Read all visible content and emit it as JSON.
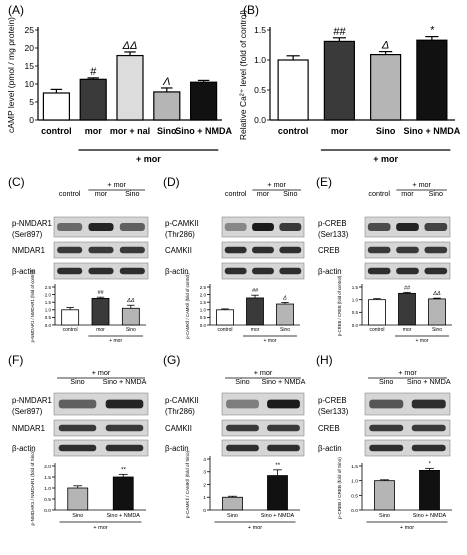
{
  "colors": {
    "white": "#ffffff",
    "black": "#111111",
    "grey": "#b5b5b5",
    "lightgrey": "#dcdcdc",
    "darkgrey": "#3a3a3a"
  },
  "panels": {
    "A": {
      "label": "(A)",
      "ylabel": "cAMP level (pmol / mg protein)",
      "group_label": "+ mor"
    },
    "B": {
      "label": "(B)",
      "ylabel": "Relative Ca²⁺ level (fold of control)",
      "group_label": "+ mor"
    },
    "C": {
      "label": "(C)",
      "blot_rows": [
        "p-NMDAR1",
        "(Ser897)",
        "NMDAR1",
        "β-actin"
      ],
      "lanes": [
        "control",
        "mor",
        "Sino"
      ],
      "mor_label": "+ mor",
      "ylabel": "p-NMDAR1 / NMDAR1 (fold of control)"
    },
    "D": {
      "label": "(D)",
      "blot_rows": [
        "p-CAMKII",
        "(Thr286)",
        "CAMKII",
        "β-actin"
      ],
      "lanes": [
        "control",
        "mor",
        "Sino"
      ],
      "mor_label": "+ mor",
      "ylabel": "p-CAMKⅡ / CAMKⅡ (fold of control)"
    },
    "E": {
      "label": "(E)",
      "blot_rows": [
        "p-CREB",
        "(Ser133)",
        "CREB",
        "β-actin"
      ],
      "lanes": [
        "control",
        "mor",
        "Sino"
      ],
      "mor_label": "+ mor",
      "ylabel": "p-CREB / CREB (fold of control)"
    },
    "F": {
      "label": "(F)",
      "blot_rows": [
        "p-NMDAR1",
        "(Ser897)",
        "NMDAR1",
        "β-actin"
      ],
      "lanes": [
        "Sino",
        "Sino + NMDA"
      ],
      "mor_label": "+ mor",
      "ylabel": "p-NMDAR1 / NMDAR1 (fold of Sino)"
    },
    "G": {
      "label": "(G)",
      "blot_rows": [
        "p-CAMKII",
        "(Thr286)",
        "CAMKII",
        "β-actin"
      ],
      "lanes": [
        "Sino",
        "Sino + NMDA"
      ],
      "mor_label": "+ mor",
      "ylabel": "p-CAMKⅡ / CAMKⅡ (fold of Sino)"
    },
    "H": {
      "label": "(H)",
      "blot_rows": [
        "p-CREB",
        "(Ser133)",
        "CREB",
        "β-actin"
      ],
      "lanes": [
        "Sino",
        "Sino + NMDA"
      ],
      "mor_label": "+ mor",
      "ylabel": "p-CREB / CREB (fold of Sino)"
    }
  },
  "chart_data": [
    {
      "id": "A",
      "type": "bar",
      "categories": [
        "control",
        "mor",
        "mor + nal",
        "Sino",
        "Sino + NMDA"
      ],
      "values": [
        7.5,
        11.3,
        17.9,
        7.8,
        10.5
      ],
      "errors": [
        1.0,
        0.4,
        1.0,
        1.1,
        0.5
      ],
      "annotations": [
        "",
        "#",
        "ΔΔ",
        "Λ",
        ""
      ],
      "fills": [
        "#ffffff",
        "#3a3a3a",
        "#dcdcdc",
        "#b5b5b5",
        "#111111"
      ],
      "xlabel": "",
      "ylabel": "cAMP level (pmol / mg protein)",
      "ylim": [
        0,
        25
      ],
      "yticks": [
        0,
        5,
        10,
        15,
        20,
        25
      ],
      "grid": false
    },
    {
      "id": "B",
      "type": "bar",
      "categories": [
        "control",
        "mor",
        "Sino",
        "Sino + NMDA"
      ],
      "values": [
        1.0,
        1.31,
        1.09,
        1.33
      ],
      "errors": [
        0.07,
        0.06,
        0.05,
        0.06
      ],
      "annotations": [
        "",
        "##",
        "Δ",
        "*"
      ],
      "fills": [
        "#ffffff",
        "#3a3a3a",
        "#b5b5b5",
        "#111111"
      ],
      "xlabel": "",
      "ylabel": "Relative Ca²⁺ level (fold of control)",
      "ylim": [
        0,
        1.5
      ],
      "yticks": [
        0.0,
        0.5,
        1.0,
        1.5
      ],
      "grid": false
    },
    {
      "id": "C",
      "type": "bar",
      "categories": [
        "control",
        "mor",
        "Sino"
      ],
      "values": [
        1.0,
        1.75,
        1.1
      ],
      "errors": [
        0.15,
        0.08,
        0.2
      ],
      "annotations": [
        "",
        "##",
        "ΔΔ"
      ],
      "fills": [
        "#ffffff",
        "#3a3a3a",
        "#b5b5b5"
      ],
      "ylabel": "p-NMDAR1 / NMDAR1 (fold of control)",
      "ylim": [
        0,
        2.5
      ],
      "yticks": [
        0.0,
        0.5,
        1.0,
        1.5,
        2.0,
        2.5
      ]
    },
    {
      "id": "D",
      "type": "bar",
      "categories": [
        "control",
        "mor",
        "Sino"
      ],
      "values": [
        1.0,
        1.78,
        1.38
      ],
      "errors": [
        0.06,
        0.18,
        0.1
      ],
      "annotations": [
        "",
        "##",
        "Δ"
      ],
      "fills": [
        "#ffffff",
        "#3a3a3a",
        "#b5b5b5"
      ],
      "ylabel": "p-CAMKⅡ / CAMKⅡ (fold of control)",
      "ylim": [
        0,
        2.5
      ],
      "yticks": [
        0.0,
        0.5,
        1.0,
        1.5,
        2.0,
        2.5
      ]
    },
    {
      "id": "E",
      "type": "bar",
      "categories": [
        "control",
        "mor",
        "Sino"
      ],
      "values": [
        1.0,
        1.25,
        1.03
      ],
      "errors": [
        0.04,
        0.04,
        0.03
      ],
      "annotations": [
        "",
        "##",
        "ΔΔ"
      ],
      "fills": [
        "#ffffff",
        "#3a3a3a",
        "#b5b5b5"
      ],
      "ylabel": "p-CREB / CREB (fold of control)",
      "ylim": [
        0,
        1.5
      ],
      "yticks": [
        0.0,
        0.5,
        1.0,
        1.5
      ]
    },
    {
      "id": "F",
      "type": "bar",
      "categories": [
        "Sino",
        "Sino + NMDA"
      ],
      "values": [
        1.0,
        1.5
      ],
      "errors": [
        0.1,
        0.12
      ],
      "annotations": [
        "",
        "**"
      ],
      "fills": [
        "#b5b5b5",
        "#111111"
      ],
      "ylabel": "p-NMDAR1 / NMDAR1 (fold of Sino)",
      "ylim": [
        0,
        2.0
      ],
      "yticks": [
        0.0,
        0.5,
        1.0,
        1.5,
        2.0
      ]
    },
    {
      "id": "G",
      "type": "bar",
      "categories": [
        "Sino",
        "Sino + NMDA"
      ],
      "values": [
        1.0,
        2.7
      ],
      "errors": [
        0.08,
        0.45
      ],
      "annotations": [
        "",
        "**"
      ],
      "fills": [
        "#b5b5b5",
        "#111111"
      ],
      "ylabel": "p-CAMKⅡ / CAMKⅡ (fold of Sino)",
      "ylim": [
        0,
        4
      ],
      "yticks": [
        0,
        1,
        2,
        3,
        4
      ]
    },
    {
      "id": "H",
      "type": "bar",
      "categories": [
        "Sino",
        "Sino + NMDA"
      ],
      "values": [
        1.0,
        1.35
      ],
      "errors": [
        0.03,
        0.07
      ],
      "annotations": [
        "",
        "*"
      ],
      "fills": [
        "#b5b5b5",
        "#111111"
      ],
      "ylabel": "p-CREB / CREB (fold of Sino)",
      "ylim": [
        0,
        1.5
      ],
      "yticks": [
        0.0,
        0.5,
        1.0,
        1.5
      ]
    }
  ]
}
